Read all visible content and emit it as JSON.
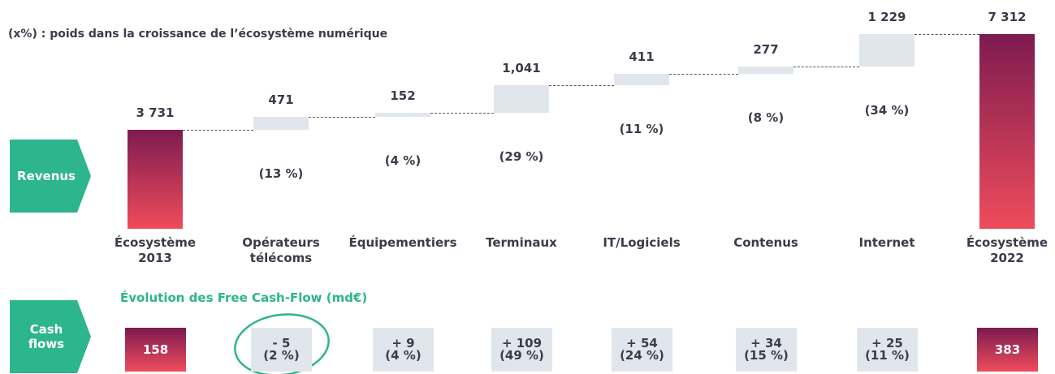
{
  "chart_data": {
    "type": "waterfall",
    "note": "(x%) : poids dans la croissance de l’écosystème numérique",
    "row_labels": [
      "Revenus",
      "Cash flows"
    ],
    "categories": [
      "Écosystème 2013",
      "Opérateurs télécoms",
      "Équipementiers",
      "Terminaux",
      "IT/Logiciels",
      "Contenus",
      "Internet",
      "Écosystème 2022"
    ],
    "values": [
      3731,
      471,
      152,
      1041,
      411,
      277,
      1229,
      7312
    ],
    "value_labels": [
      "3 731",
      "471",
      "152",
      "1,041",
      "411",
      "277",
      "1 229",
      "7 312"
    ],
    "shares": [
      13,
      4,
      29,
      11,
      8,
      34
    ],
    "share_labels": [
      "(13 %)",
      "(4 %)",
      "(29 %)",
      "(11 %)",
      "(8 %)",
      "(34 %)"
    ],
    "colors": {
      "total_top": "#7d1b50",
      "total_bottom": "#ef4c5b",
      "step": "#e1e6ec",
      "accent": "#2db58d"
    },
    "cash_flow": {
      "title": "Évolution des Free Cash-Flow (md€)",
      "values": [
        158,
        -5,
        9,
        109,
        54,
        34,
        25,
        383
      ],
      "value_labels": [
        "158",
        "- 5",
        "+ 9",
        "+ 109",
        "+ 54",
        "+ 34",
        "+ 25",
        "383"
      ],
      "shares": [
        2,
        4,
        49,
        24,
        15,
        11
      ],
      "share_labels": [
        "(2 %)",
        "(4 %)",
        "(49 %)",
        "(24 %)",
        "(15 %)",
        "(11 %)"
      ]
    }
  }
}
